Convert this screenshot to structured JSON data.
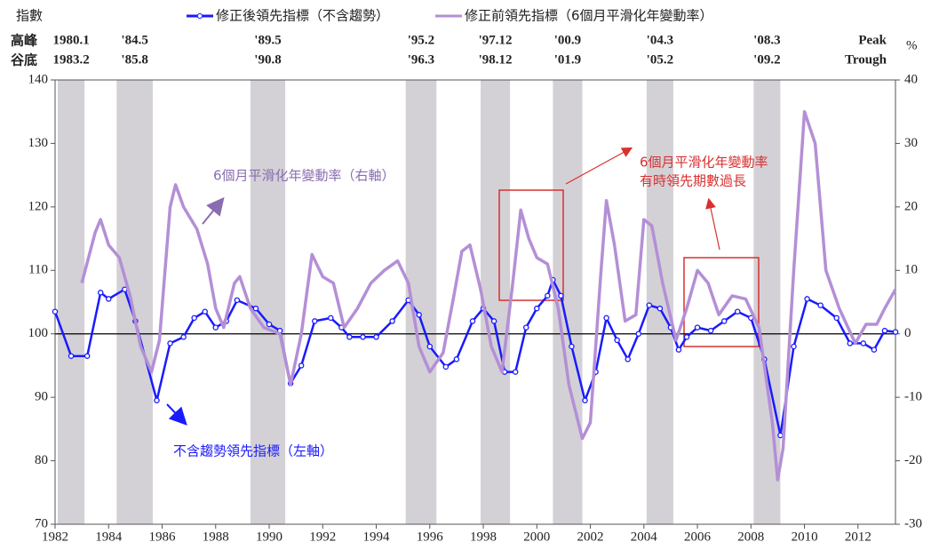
{
  "chart_data": {
    "type": "line",
    "y_label": "指數",
    "y2_label": "%",
    "xlim": [
      1982,
      2013.4
    ],
    "xticks": [
      1982,
      1984,
      1986,
      1988,
      1990,
      1992,
      1994,
      1996,
      1998,
      2000,
      2002,
      2004,
      2006,
      2008,
      2010,
      2012
    ],
    "ylim": [
      70,
      140
    ],
    "yticks": [
      70,
      80,
      90,
      100,
      110,
      120,
      130,
      140
    ],
    "y2lim": [
      -30,
      40
    ],
    "y2ticks": [
      -30,
      -20,
      -10,
      0,
      10,
      20,
      30,
      40
    ],
    "reference_line": 100,
    "recession_color": "#d3d1d6",
    "recessions": [
      [
        1982.1,
        1983.1
      ],
      [
        1984.3,
        1985.65
      ],
      [
        1989.3,
        1990.6
      ],
      [
        1995.1,
        1996.25
      ],
      [
        1997.9,
        1999.0
      ],
      [
        2000.6,
        2001.7
      ],
      [
        2004.1,
        2005.1
      ],
      [
        2008.1,
        2009.1
      ]
    ],
    "peak_row": {
      "label": "高峰",
      "items": [
        "1980.1",
        "'84.5",
        "'89.5",
        "'95.2",
        "'97.12",
        "'00.9",
        "'04.3",
        "'08.3"
      ],
      "end": "Peak"
    },
    "trough_row": {
      "label": "谷底",
      "items": [
        "1983.2",
        "'85.8",
        "'90.8",
        "'96.3",
        "'98.12",
        "'01.9",
        "'05.2",
        "'09.2"
      ],
      "end": "Trough"
    },
    "annotations": [
      "6個月平滑化年變動率（右軸）",
      "不含趨勢領先指標（左軸）",
      "6個月平滑化年變動率",
      "有時領先期數過長"
    ],
    "series": [
      {
        "name": "修正後領先指標（不含趨勢）",
        "color": "#1a1aff",
        "markers": true,
        "x": [
          1982.0,
          1982.6,
          1983.2,
          1983.7,
          1984.0,
          1984.6,
          1985.0,
          1985.8,
          1986.3,
          1986.8,
          1987.2,
          1987.6,
          1988.0,
          1988.4,
          1988.8,
          1989.5,
          1990.0,
          1990.4,
          1990.8,
          1991.2,
          1991.7,
          1992.3,
          1992.7,
          1993.0,
          1993.5,
          1994.0,
          1994.6,
          1995.2,
          1995.6,
          1996.0,
          1996.6,
          1997.0,
          1997.6,
          1998.0,
          1998.4,
          1998.8,
          1999.2,
          1999.6,
          2000.0,
          2000.4,
          2000.6,
          2000.9,
          2001.3,
          2001.8,
          2002.2,
          2002.6,
          2003.0,
          2003.4,
          2003.8,
          2004.2,
          2004.6,
          2005.0,
          2005.3,
          2005.6,
          2006.0,
          2006.5,
          2007.0,
          2007.5,
          2008.0,
          2008.5,
          2009.1,
          2009.6,
          2010.1,
          2010.6,
          2011.2,
          2011.7,
          2012.2,
          2012.6,
          2013.0,
          2013.4
        ],
        "values": [
          103.5,
          96.5,
          96.5,
          106.5,
          105.5,
          107,
          102,
          89.5,
          98.5,
          99.5,
          102.5,
          103.5,
          101,
          102,
          105.3,
          104,
          101.5,
          100.5,
          92.2,
          95,
          102,
          102.5,
          101,
          99.5,
          99.5,
          99.5,
          102,
          105.3,
          103,
          98,
          94.8,
          96,
          102,
          104,
          102,
          94,
          94,
          101,
          104,
          106,
          108.5,
          106,
          98,
          89.5,
          94,
          102.5,
          99,
          96,
          100,
          104.5,
          104,
          101,
          97.5,
          99.5,
          101,
          100.5,
          102,
          103.5,
          102.5,
          96,
          84,
          98,
          105.5,
          104.5,
          102.5,
          98.5,
          98.5,
          97.5,
          100.5,
          100.3
        ]
      },
      {
        "name": "修正前領先指標（6個月平滑化年變動率）",
        "color": "#b48fd6",
        "axis": "y2",
        "x": [
          1983.0,
          1983.5,
          1983.7,
          1984.0,
          1984.4,
          1984.8,
          1985.2,
          1985.6,
          1985.9,
          1986.3,
          1986.5,
          1986.8,
          1987.3,
          1987.7,
          1988.0,
          1988.3,
          1988.7,
          1988.9,
          1989.3,
          1989.8,
          1990.4,
          1990.8,
          1991.2,
          1991.6,
          1992.0,
          1992.4,
          1992.8,
          1993.3,
          1993.8,
          1994.3,
          1994.8,
          1995.2,
          1995.6,
          1996.0,
          1996.5,
          1996.9,
          1997.2,
          1997.5,
          1997.9,
          1998.3,
          1998.7,
          1999.1,
          1999.4,
          1999.7,
          2000.0,
          2000.4,
          2000.8,
          2001.2,
          2001.7,
          2002.0,
          2002.4,
          2002.6,
          2002.9,
          2003.3,
          2003.7,
          2004.0,
          2004.3,
          2004.7,
          2005.2,
          2005.6,
          2006.0,
          2006.4,
          2006.8,
          2007.3,
          2007.8,
          2008.3,
          2008.8,
          2009.0,
          2009.2,
          2009.6,
          2010.0,
          2010.4,
          2010.8,
          2011.3,
          2011.9,
          2012.3,
          2012.7,
          2013.0,
          2013.4
        ],
        "values": [
          8,
          16,
          18,
          14,
          12,
          6,
          -2,
          -6,
          -1,
          20,
          23.5,
          20,
          16.5,
          11,
          4,
          1,
          8,
          9,
          4,
          1,
          0,
          -8,
          0,
          12.5,
          9,
          8,
          1,
          4,
          8,
          10,
          11.5,
          8,
          -2,
          -6,
          -3,
          6,
          13,
          14,
          7,
          -2,
          -6,
          8,
          19.5,
          15,
          12,
          11,
          4,
          -8,
          -16.5,
          -14,
          10,
          21,
          14,
          2,
          3,
          18,
          17,
          8,
          -1,
          4,
          10,
          8,
          3,
          6,
          5.5,
          1,
          -14,
          -23,
          -18,
          10,
          35,
          30,
          10,
          4,
          -1.5,
          1.5,
          1.5,
          4,
          7
        ]
      }
    ]
  }
}
